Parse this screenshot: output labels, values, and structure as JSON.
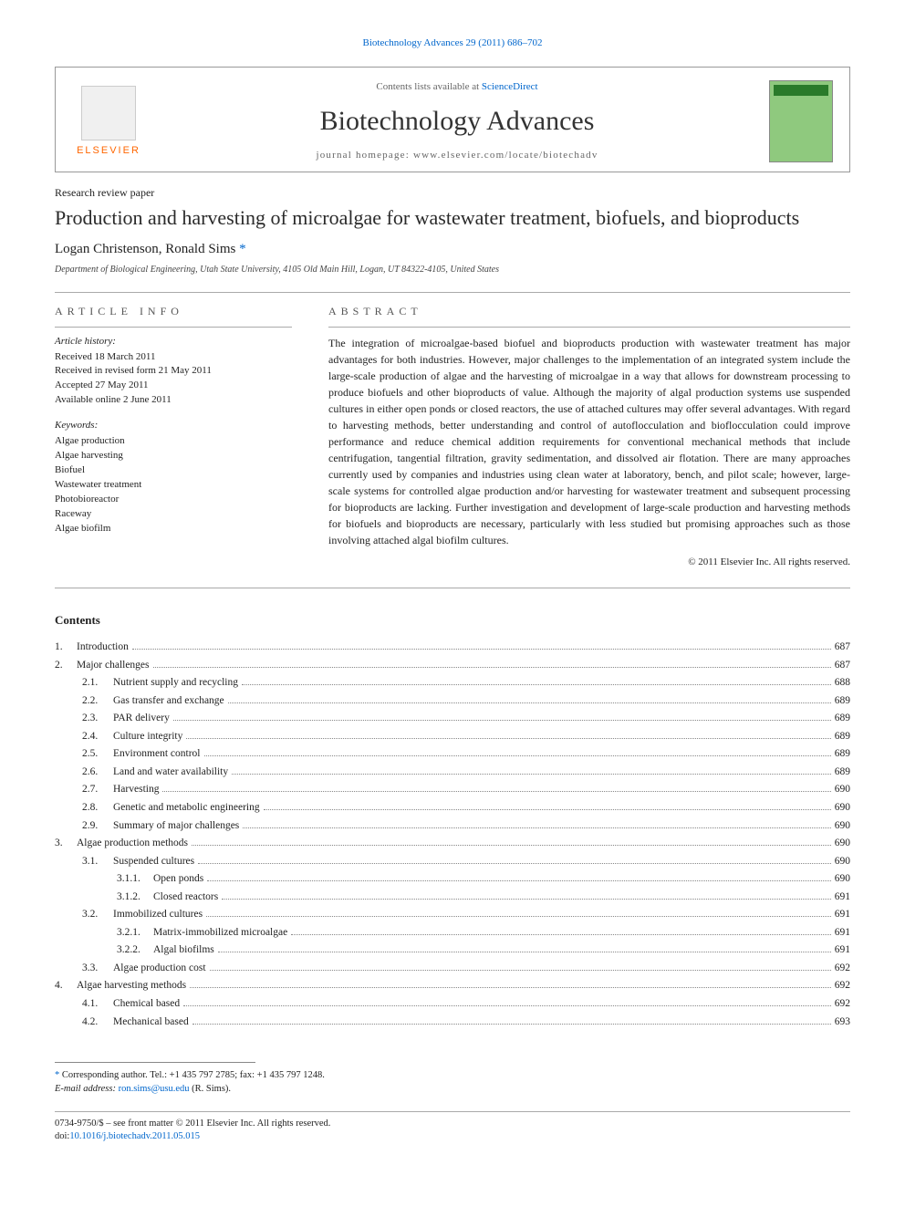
{
  "colors": {
    "link": "#0066cc",
    "elsevier_orange": "#ff6600",
    "cover_bg": "#8fc97e",
    "cover_bar": "#2a7a2a",
    "text": "#222222",
    "muted": "#666666",
    "rule": "#aaaaaa"
  },
  "top_citation": "Biotechnology Advances 29 (2011) 686–702",
  "header": {
    "contents_prefix": "Contents lists available at ",
    "contents_link": "ScienceDirect",
    "journal": "Biotechnology Advances",
    "homepage_label": "journal homepage: ",
    "homepage_url": "www.elsevier.com/locate/biotechadv",
    "elsevier_label": "ELSEVIER"
  },
  "paper": {
    "type": "Research review paper",
    "title": "Production and harvesting of microalgae for wastewater treatment, biofuels, and bioproducts",
    "authors": "Logan Christenson, Ronald Sims ",
    "corr_marker": "*",
    "affiliation": "Department of Biological Engineering, Utah State University, 4105 Old Main Hill, Logan, UT 84322-4105, United States"
  },
  "article_info": {
    "heading": "ARTICLE INFO",
    "history_label": "Article history:",
    "history": [
      "Received 18 March 2011",
      "Received in revised form 21 May 2011",
      "Accepted 27 May 2011",
      "Available online 2 June 2011"
    ],
    "keywords_label": "Keywords:",
    "keywords": [
      "Algae production",
      "Algae harvesting",
      "Biofuel",
      "Wastewater treatment",
      "Photobioreactor",
      "Raceway",
      "Algae biofilm"
    ]
  },
  "abstract": {
    "heading": "ABSTRACT",
    "text": "The integration of microalgae-based biofuel and bioproducts production with wastewater treatment has major advantages for both industries. However, major challenges to the implementation of an integrated system include the large-scale production of algae and the harvesting of microalgae in a way that allows for downstream processing to produce biofuels and other bioproducts of value. Although the majority of algal production systems use suspended cultures in either open ponds or closed reactors, the use of attached cultures may offer several advantages. With regard to harvesting methods, better understanding and control of autoflocculation and bioflocculation could improve performance and reduce chemical addition requirements for conventional mechanical methods that include centrifugation, tangential filtration, gravity sedimentation, and dissolved air flotation. There are many approaches currently used by companies and industries using clean water at laboratory, bench, and pilot scale; however, large-scale systems for controlled algae production and/or harvesting for wastewater treatment and subsequent processing for bioproducts are lacking. Further investigation and development of large-scale production and harvesting methods for biofuels and bioproducts are necessary, particularly with less studied but promising approaches such as those involving attached algal biofilm cultures.",
    "copyright": "© 2011 Elsevier Inc. All rights reserved."
  },
  "contents": {
    "heading": "Contents",
    "entries": [
      {
        "num": "1.",
        "title": "Introduction",
        "page": "687",
        "level": 0
      },
      {
        "num": "2.",
        "title": "Major challenges",
        "page": "687",
        "level": 0
      },
      {
        "num": "2.1.",
        "title": "Nutrient supply and recycling",
        "page": "688",
        "level": 1
      },
      {
        "num": "2.2.",
        "title": "Gas transfer and exchange",
        "page": "689",
        "level": 1
      },
      {
        "num": "2.3.",
        "title": "PAR delivery",
        "page": "689",
        "level": 1
      },
      {
        "num": "2.4.",
        "title": "Culture integrity",
        "page": "689",
        "level": 1
      },
      {
        "num": "2.5.",
        "title": "Environment control",
        "page": "689",
        "level": 1
      },
      {
        "num": "2.6.",
        "title": "Land and water availability",
        "page": "689",
        "level": 1
      },
      {
        "num": "2.7.",
        "title": "Harvesting",
        "page": "690",
        "level": 1
      },
      {
        "num": "2.8.",
        "title": "Genetic and metabolic engineering",
        "page": "690",
        "level": 1
      },
      {
        "num": "2.9.",
        "title": "Summary of major challenges",
        "page": "690",
        "level": 1
      },
      {
        "num": "3.",
        "title": "Algae production methods",
        "page": "690",
        "level": 0
      },
      {
        "num": "3.1.",
        "title": "Suspended cultures",
        "page": "690",
        "level": 1
      },
      {
        "num": "3.1.1.",
        "title": "Open ponds",
        "page": "690",
        "level": 2
      },
      {
        "num": "3.1.2.",
        "title": "Closed reactors",
        "page": "691",
        "level": 2
      },
      {
        "num": "3.2.",
        "title": "Immobilized cultures",
        "page": "691",
        "level": 1
      },
      {
        "num": "3.2.1.",
        "title": "Matrix-immobilized microalgae",
        "page": "691",
        "level": 2
      },
      {
        "num": "3.2.2.",
        "title": "Algal biofilms",
        "page": "691",
        "level": 2
      },
      {
        "num": "3.3.",
        "title": "Algae production cost",
        "page": "692",
        "level": 1
      },
      {
        "num": "4.",
        "title": "Algae harvesting methods",
        "page": "692",
        "level": 0
      },
      {
        "num": "4.1.",
        "title": "Chemical based",
        "page": "692",
        "level": 1
      },
      {
        "num": "4.2.",
        "title": "Mechanical based",
        "page": "693",
        "level": 1
      }
    ]
  },
  "footnote": {
    "marker": "*",
    "text": " Corresponding author. Tel.: +1 435 797 2785; fax: +1 435 797 1248.",
    "email_label": "E-mail address: ",
    "email": "ron.sims@usu.edu",
    "email_suffix": " (R. Sims)."
  },
  "footer": {
    "issn": "0734-9750/$ – see front matter © 2011 Elsevier Inc. All rights reserved.",
    "doi_prefix": "doi:",
    "doi": "10.1016/j.biotechadv.2011.05.015"
  }
}
